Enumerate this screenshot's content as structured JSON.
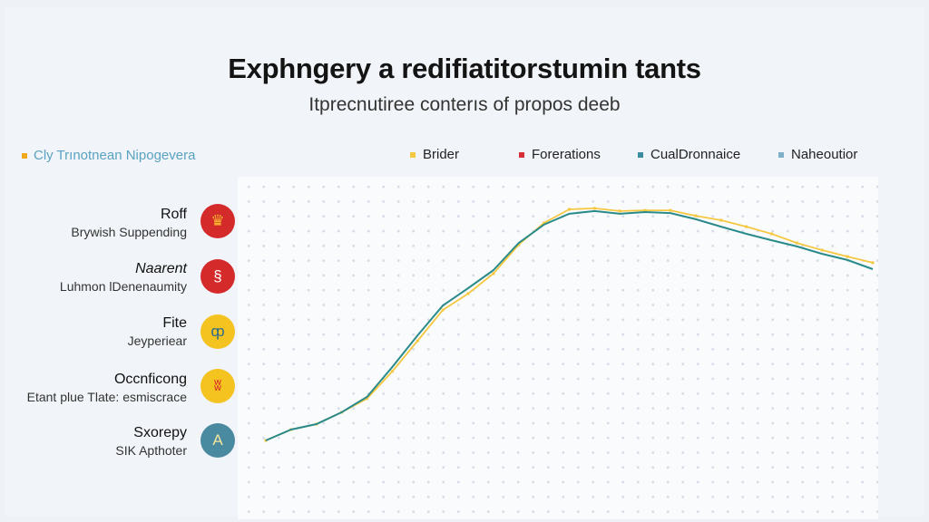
{
  "title": "Exphngery a redifiatitorstumin tants",
  "subtitle": "Itprecnutiree conterıs of propos deeb",
  "series_label": {
    "text": "Cly Trınotnean Nipogevera",
    "color": "#f0a81c"
  },
  "legend": [
    {
      "label": "Brider",
      "color": "#f5c842"
    },
    {
      "label": "Forerations",
      "color": "#d62f3a"
    },
    {
      "label": "CualDronnaice",
      "color": "#3a8ea0"
    },
    {
      "label": "Naheoutior",
      "color": "#7fb0c8"
    }
  ],
  "items": [
    {
      "name": "Roff",
      "desc": "Brywish Suppending",
      "icon": "crown-icon",
      "color": "#d42a2a",
      "glyph": "♛",
      "glyph_color": "#f5b82e"
    },
    {
      "name": "Naarent",
      "desc": "Luhmon lDenenaumity",
      "icon": "figure-icon",
      "color": "#d42a2a",
      "glyph": "§",
      "glyph_color": "#ffffff"
    },
    {
      "name": "Fite",
      "desc": "Jeyperiear",
      "icon": "bird-icon",
      "color": "#f5c320",
      "glyph": "ȹ",
      "glyph_color": "#2b6a8a"
    },
    {
      "name": "Occnficong",
      "desc": "Etant plue Tlate: esmiscrace",
      "icon": "logo-icon",
      "color": "#f5c320",
      "glyph": "ʬ",
      "glyph_color": "#d42a2a"
    },
    {
      "name": "Sxorepy",
      "desc": "SIK Apthoter",
      "icon": "triangle-icon",
      "color": "#4a8aa0",
      "glyph": "A",
      "glyph_color": "#f5e6a0"
    }
  ],
  "chart_data": {
    "type": "line",
    "title": "Exphngery a redifiatitorstumin tants",
    "subtitle": "Itprecnutiree conterıs of propos deeb",
    "xlabel": "",
    "ylabel": "",
    "grid": "dotted",
    "legend_placement": "top",
    "x": [
      0,
      1,
      2,
      3,
      4,
      5,
      6,
      7,
      8,
      9,
      10,
      11,
      12,
      13,
      14,
      15,
      16,
      17,
      18,
      19,
      20,
      21,
      22,
      23,
      24
    ],
    "ylim": [
      0,
      100
    ],
    "series": [
      {
        "name": "Brider",
        "color": "#f5c842",
        "values": [
          22.4,
          25.6,
          27.2,
          30.7,
          34.7,
          42.7,
          51.7,
          60.8,
          65.6,
          71.5,
          80,
          86.4,
          90.4,
          90.7,
          89.9,
          90.1,
          90.1,
          88.5,
          87.2,
          85.3,
          83.2,
          80.5,
          78.4,
          76.5,
          74.7
        ]
      },
      {
        "name": "CualDronnaice",
        "color": "#2a8a8a",
        "values": [
          22.4,
          25.6,
          27.2,
          30.7,
          35.2,
          44,
          53.3,
          62.1,
          67.2,
          72.5,
          80.5,
          85.9,
          89.1,
          89.9,
          89.1,
          89.6,
          89.3,
          87.5,
          85.3,
          83.2,
          81.3,
          79.5,
          77.3,
          75.5,
          72.8
        ]
      }
    ]
  }
}
